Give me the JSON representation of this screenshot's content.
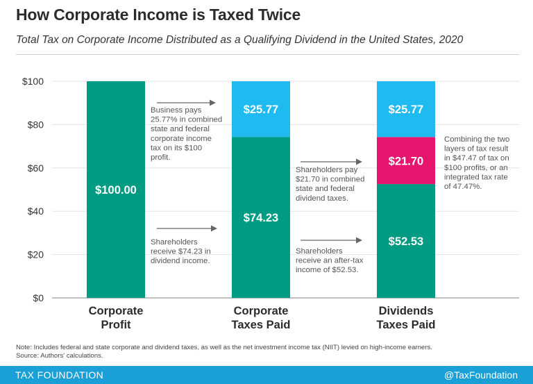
{
  "header": {
    "title": "How Corporate Income is Taxed Twice",
    "subtitle": "Total Tax on Corporate Income Distributed as a Qualifying Dividend in the United States, 2020"
  },
  "chart_data": {
    "type": "bar",
    "stacked": true,
    "categories": [
      "Corporate\nProfit",
      "Corporate\nTaxes Paid",
      "Dividends\nTaxes Paid"
    ],
    "ylim": [
      0,
      100
    ],
    "yticks": [
      "$0",
      "$20",
      "$40",
      "$60",
      "$80",
      "$100"
    ],
    "ytick_values": [
      0,
      20,
      40,
      60,
      80,
      100
    ],
    "grid": true,
    "bars": [
      {
        "segments": [
          {
            "value": 100.0,
            "label": "$100.00",
            "color": "#009b82"
          }
        ]
      },
      {
        "segments": [
          {
            "value": 74.23,
            "label": "$74.23",
            "color": "#009b82"
          },
          {
            "value": 25.77,
            "label": "$25.77",
            "color": "#1fbaf0"
          }
        ]
      },
      {
        "segments": [
          {
            "value": 52.53,
            "label": "$52.53",
            "color": "#009b82"
          },
          {
            "value": 21.7,
            "label": "$21.70",
            "color": "#e8156f"
          },
          {
            "value": 25.77,
            "label": "$25.77",
            "color": "#1fbaf0"
          }
        ]
      }
    ],
    "annotations": [
      {
        "text": "Business pays\n25.77% in combined\nstate and federal\ncorporate income\ntax on its $100\nprofit.",
        "arrow": true
      },
      {
        "text": "Shareholders\nreceive $74.23 in\ndividend income.",
        "arrow": true
      },
      {
        "text": "Shareholders pay\n$21.70 in combined\nstate and federal\ndividend taxes.",
        "arrow": true
      },
      {
        "text": "Shareholders\nreceive an after-tax\nincome of $52.53.",
        "arrow": true
      },
      {
        "text": "Combining the two\nlayers of tax result\nin $47.47 of tax on\n$100 profits, or an\nintegrated tax rate\nof 47.47%.",
        "arrow": false
      }
    ]
  },
  "notes": {
    "note": "Note: Includes federal and state corporate and dividend taxes, as well as the net investment income tax (NIIT) levied on high-income earners.",
    "source": "Source: Authors' calculations."
  },
  "footer": {
    "brand": "TAX FOUNDATION",
    "handle": "@TaxFoundation"
  },
  "colors": {
    "green": "#009b82",
    "blue": "#1fbaf0",
    "pink": "#e8156f",
    "footer": "#1a9fd6"
  }
}
